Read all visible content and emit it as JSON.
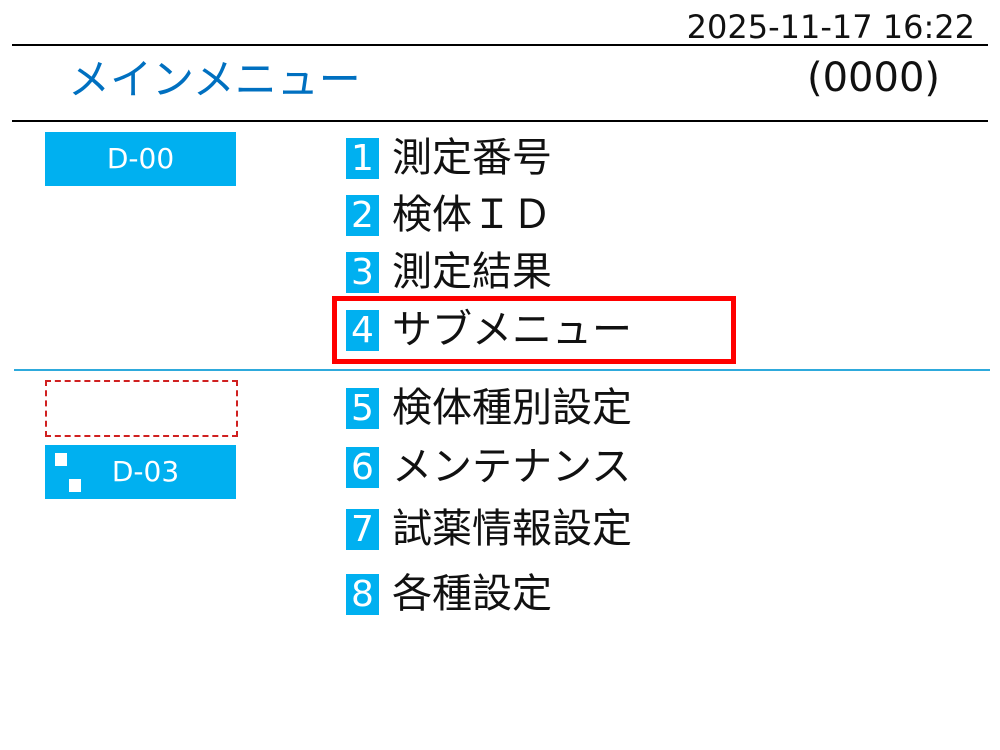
{
  "header": {
    "datetime": "2025-11-17 16:22",
    "title": "メインメニュー",
    "code": "(0000)"
  },
  "status": {
    "top_box": "D-00",
    "bottom_box": "D-03",
    "empty_box": ""
  },
  "menu": [
    {
      "num": "1",
      "label": "測定番号"
    },
    {
      "num": "2",
      "label": "検体ＩＤ"
    },
    {
      "num": "3",
      "label": "測定結果"
    },
    {
      "num": "4",
      "label": "サブメニュー",
      "highlighted": true
    },
    {
      "num": "5",
      "label": "検体種別設定"
    },
    {
      "num": "6",
      "label": "メンテナンス"
    },
    {
      "num": "7",
      "label": "試薬情報設定"
    },
    {
      "num": "8",
      "label": "各種設定"
    }
  ],
  "colors": {
    "accent": "#00b0f0",
    "title": "#0070c0",
    "highlight": "#ff0000",
    "dashed": "#d02020"
  }
}
